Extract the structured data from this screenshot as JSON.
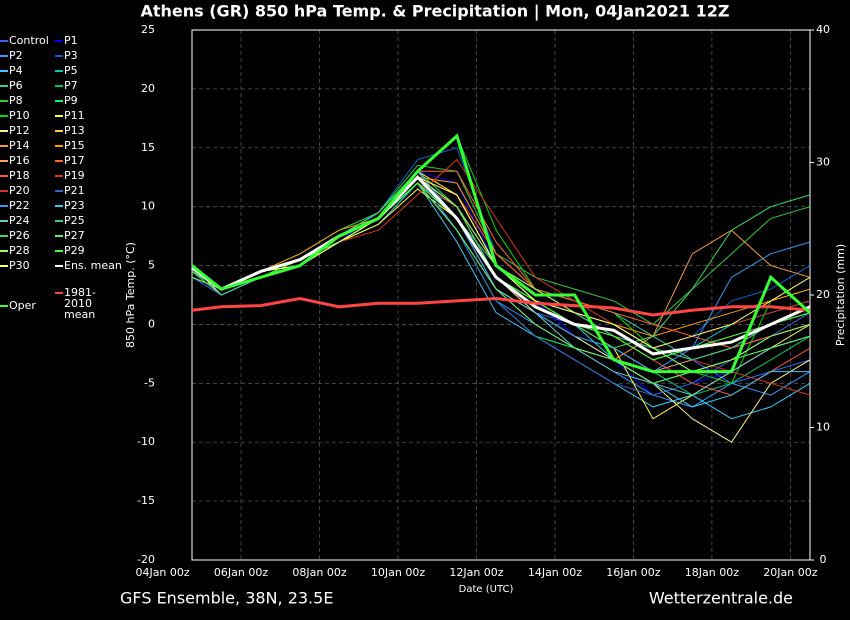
{
  "chart_data": {
    "type": "line",
    "title": "Athens  (GR)  850 hPa Temp. & Precipitation | Mon, 04Jan2021 12Z",
    "y_label": "850 hPa Temp. (°C)",
    "y2_label": "Precipitation (mm)",
    "x_label": "Date (UTC)",
    "footer_left": "GFS Ensemble, 38N, 23.5E",
    "footer_right": "Wetterzentrale.de",
    "grid": true,
    "legend": "left",
    "xlim": [
      "04Jan 18z",
      "20Jan 12z"
    ],
    "xticks": [
      "04Jan 00z",
      "06Jan 00z",
      "08Jan 00z",
      "10Jan 00z",
      "12Jan 00z",
      "14Jan 00z",
      "16Jan 00z",
      "18Jan 00z",
      "20Jan 00z"
    ],
    "ylim": [
      -20,
      25
    ],
    "yticks": [
      -20,
      -15,
      -10,
      -5,
      0,
      5,
      10,
      15,
      20,
      25
    ],
    "y2lim": [
      0,
      40
    ],
    "y2ticks": [
      0,
      10,
      20,
      30,
      40
    ],
    "x": [
      "04Jan 18z",
      "05Jan 12z",
      "06Jan 12z",
      "07Jan 12z",
      "08Jan 12z",
      "09Jan 12z",
      "10Jan 12z",
      "11Jan 12z",
      "12Jan 12z",
      "13Jan 12z",
      "14Jan 12z",
      "15Jan 12z",
      "16Jan 12z",
      "17Jan 12z",
      "18Jan 12z",
      "19Jan 12z",
      "20Jan 12z"
    ],
    "series": [
      {
        "name": "Control",
        "color": "#3366ff",
        "values": [
          5,
          3,
          4.5,
          5,
          7.5,
          9,
          13,
          9,
          3,
          1,
          0,
          -2,
          -4,
          -3,
          -5,
          -4,
          -3
        ]
      },
      {
        "name": "P1",
        "color": "#0000ff",
        "values": [
          4,
          2.5,
          4,
          5.5,
          7,
          9.5,
          13,
          12,
          5,
          2,
          -1,
          -3,
          -6,
          -5,
          -4,
          -2,
          0
        ]
      },
      {
        "name": "P2",
        "color": "#3399ff",
        "values": [
          5,
          3,
          4,
          5,
          7.5,
          9,
          12.5,
          8,
          2,
          0,
          -2,
          -4,
          -6,
          -7,
          -5,
          -6,
          -4
        ]
      },
      {
        "name": "P3",
        "color": "#0066cc",
        "values": [
          4.5,
          3,
          4.5,
          6,
          8,
          9.5,
          14,
          15,
          6,
          3,
          1,
          0,
          -2,
          -1,
          2,
          3,
          5
        ]
      },
      {
        "name": "P4",
        "color": "#33ccff",
        "values": [
          5,
          2.5,
          4,
          5,
          7,
          8.5,
          12,
          7,
          1,
          -1,
          -3,
          -5,
          -7,
          -6,
          -8,
          -7,
          -5
        ]
      },
      {
        "name": "P5",
        "color": "#00cccc",
        "values": [
          4,
          3,
          4.5,
          5,
          7,
          9,
          12,
          10,
          4,
          2,
          1,
          -1,
          -3,
          -2,
          0,
          1,
          2
        ]
      },
      {
        "name": "P6",
        "color": "#33cc99",
        "values": [
          5,
          3,
          4,
          5.5,
          7.5,
          9,
          13,
          11,
          5,
          3,
          2,
          1,
          -1,
          -3,
          -2,
          -1,
          0
        ]
      },
      {
        "name": "P7",
        "color": "#00cc66",
        "values": [
          4.5,
          2.5,
          4,
          5,
          7,
          9,
          12,
          9,
          3,
          1,
          -1,
          -2,
          -4,
          -6,
          -5,
          -3,
          -1
        ]
      },
      {
        "name": "P8",
        "color": "#33cc33",
        "values": [
          5,
          3,
          4.5,
          6,
          8,
          9.5,
          13.5,
          13,
          6,
          4,
          3,
          2,
          0,
          3,
          6,
          9,
          10
        ]
      },
      {
        "name": "P9",
        "color": "#00ff66",
        "values": [
          4,
          3,
          4,
          5,
          7,
          9,
          12,
          8,
          2,
          -1,
          -2,
          -3,
          -5,
          -4,
          -3,
          -2,
          -1
        ]
      },
      {
        "name": "P10",
        "color": "#00dd00",
        "values": [
          5,
          3,
          4.5,
          5.5,
          7.5,
          9,
          13,
          16,
          8,
          3,
          2,
          1,
          -2,
          -4,
          -5,
          2,
          3
        ]
      },
      {
        "name": "P11",
        "color": "#ffff33",
        "values": [
          4.5,
          3,
          4,
          5,
          7,
          8.5,
          11.5,
          9,
          4,
          2,
          0,
          -2,
          -8,
          -6,
          -4,
          -2,
          0
        ]
      },
      {
        "name": "P12",
        "color": "#ffee88",
        "values": [
          5,
          2.5,
          4,
          5.5,
          7,
          9,
          12.5,
          10,
          4,
          1,
          -1,
          -3,
          -5,
          -8,
          -10,
          -5,
          -3
        ]
      },
      {
        "name": "P13",
        "color": "#ffcc33",
        "values": [
          4.5,
          3,
          4.5,
          5,
          7.5,
          9.5,
          13,
          11,
          5,
          2,
          0,
          -1,
          -3,
          -2,
          -1,
          0,
          1
        ]
      },
      {
        "name": "P14",
        "color": "#ff9933",
        "values": [
          5,
          3,
          4,
          5,
          7,
          9,
          12,
          9,
          3,
          0,
          -2,
          -3,
          -1,
          6,
          8,
          5,
          4
        ]
      },
      {
        "name": "P15",
        "color": "#ff9900",
        "values": [
          4,
          3,
          4.5,
          6,
          8,
          9,
          12.5,
          12,
          6,
          3,
          1,
          0,
          -1,
          0,
          1,
          2,
          3
        ]
      },
      {
        "name": "P16",
        "color": "#ff9966",
        "values": [
          5,
          3,
          4,
          5,
          7,
          9,
          12,
          10,
          5,
          2,
          0,
          -2,
          -4,
          -3,
          -2,
          0,
          1
        ]
      },
      {
        "name": "P17",
        "color": "#ff6633",
        "values": [
          4.5,
          2.5,
          4,
          5.5,
          7.5,
          9,
          13,
          13,
          7,
          3,
          2,
          1,
          0,
          -1,
          -2,
          -1,
          0
        ]
      },
      {
        "name": "P18",
        "color": "#ff5533",
        "values": [
          5,
          3,
          4.5,
          5,
          7,
          9,
          12.5,
          11,
          6,
          3,
          1,
          -1,
          -3,
          -5,
          -6,
          -4,
          -2
        ]
      },
      {
        "name": "P19",
        "color": "#dd3311",
        "values": [
          4.5,
          3,
          4,
          5,
          7,
          8,
          11,
          14,
          9,
          4,
          2,
          0,
          -2,
          -3,
          -4,
          -5,
          -6
        ]
      },
      {
        "name": "P20",
        "color": "#cc3333",
        "values": [
          5,
          3,
          4.5,
          5.5,
          7.5,
          9,
          12,
          10,
          4,
          2,
          1,
          -1,
          -2,
          -1,
          0,
          1,
          2
        ]
      },
      {
        "name": "P21",
        "color": "#3366cc",
        "values": [
          4,
          2.5,
          4,
          5,
          7,
          9,
          12.5,
          8,
          2,
          -1,
          -3,
          -5,
          -6,
          -5,
          -3,
          -1,
          1
        ]
      },
      {
        "name": "P22",
        "color": "#3399ff",
        "values": [
          5,
          3,
          4,
          5,
          7.5,
          9.5,
          13,
          9,
          3,
          1,
          -1,
          -2,
          -4,
          -2,
          4,
          6,
          7
        ]
      },
      {
        "name": "P23",
        "color": "#33ccee",
        "values": [
          4.5,
          3,
          4.5,
          5.5,
          7,
          9,
          12.5,
          9,
          4,
          2,
          0,
          -3,
          -5,
          -7,
          -6,
          -4,
          -4
        ]
      },
      {
        "name": "P24",
        "color": "#66cccc",
        "values": [
          5,
          3,
          4,
          5,
          7,
          9,
          12,
          8,
          3,
          1,
          -2,
          -4,
          -5,
          -6,
          -4,
          -2,
          -1
        ]
      },
      {
        "name": "P25",
        "color": "#33cc99",
        "values": [
          4.5,
          2.5,
          4,
          5,
          7.5,
          9,
          12.5,
          9,
          5,
          2,
          1,
          -1,
          -2,
          -3,
          -2,
          0,
          1
        ]
      },
      {
        "name": "P26",
        "color": "#33dd66",
        "values": [
          5,
          3,
          4.5,
          5.5,
          7.5,
          9.5,
          13,
          10,
          4,
          2,
          0,
          -2,
          -1,
          3,
          8,
          10,
          11
        ]
      },
      {
        "name": "P27",
        "color": "#66ee66",
        "values": [
          4,
          3,
          4,
          5,
          7,
          9,
          12,
          8,
          3,
          0,
          -2,
          -3,
          -5,
          -4,
          -3,
          -2,
          -1
        ]
      },
      {
        "name": "P28",
        "color": "#99ff66",
        "values": [
          5,
          3,
          4.5,
          5,
          7.5,
          9,
          12.5,
          10,
          5,
          3,
          1,
          0,
          -2,
          -4,
          -3,
          -1,
          0
        ]
      },
      {
        "name": "P29",
        "color": "#33ff33",
        "values": [
          4.5,
          3,
          4,
          5.5,
          7,
          9,
          12,
          9,
          4,
          2,
          0,
          -1,
          -3,
          -2,
          -1,
          0,
          1
        ]
      },
      {
        "name": "P30",
        "color": "#ffff66",
        "values": [
          5,
          3,
          4.5,
          5,
          7,
          9,
          12.5,
          11,
          5,
          2,
          1,
          0,
          -2,
          -1,
          0,
          2,
          4
        ]
      },
      {
        "name": "Ens. mean",
        "color": "#ffffff",
        "values": [
          4.8,
          3,
          4.5,
          5.5,
          7.5,
          9,
          12.5,
          9,
          4,
          1.5,
          0,
          -0.5,
          -2.5,
          -2,
          -1.5,
          0,
          1.5
        ]
      },
      {
        "name": "1981-2010 mean",
        "color": "#ff4444",
        "values": [
          1.2,
          1.5,
          1.6,
          2.2,
          1.5,
          1.8,
          1.8,
          2.0,
          2.2,
          1.8,
          1.6,
          1.4,
          0.8,
          1.2,
          1.5,
          1.5,
          1.2
        ]
      },
      {
        "name": "Oper",
        "color": "#33ff33",
        "values": [
          5,
          3,
          4,
          5,
          7.5,
          9,
          13,
          16,
          5,
          2.5,
          2.5,
          -3,
          -4,
          -4,
          -4,
          4,
          1
        ]
      }
    ]
  }
}
